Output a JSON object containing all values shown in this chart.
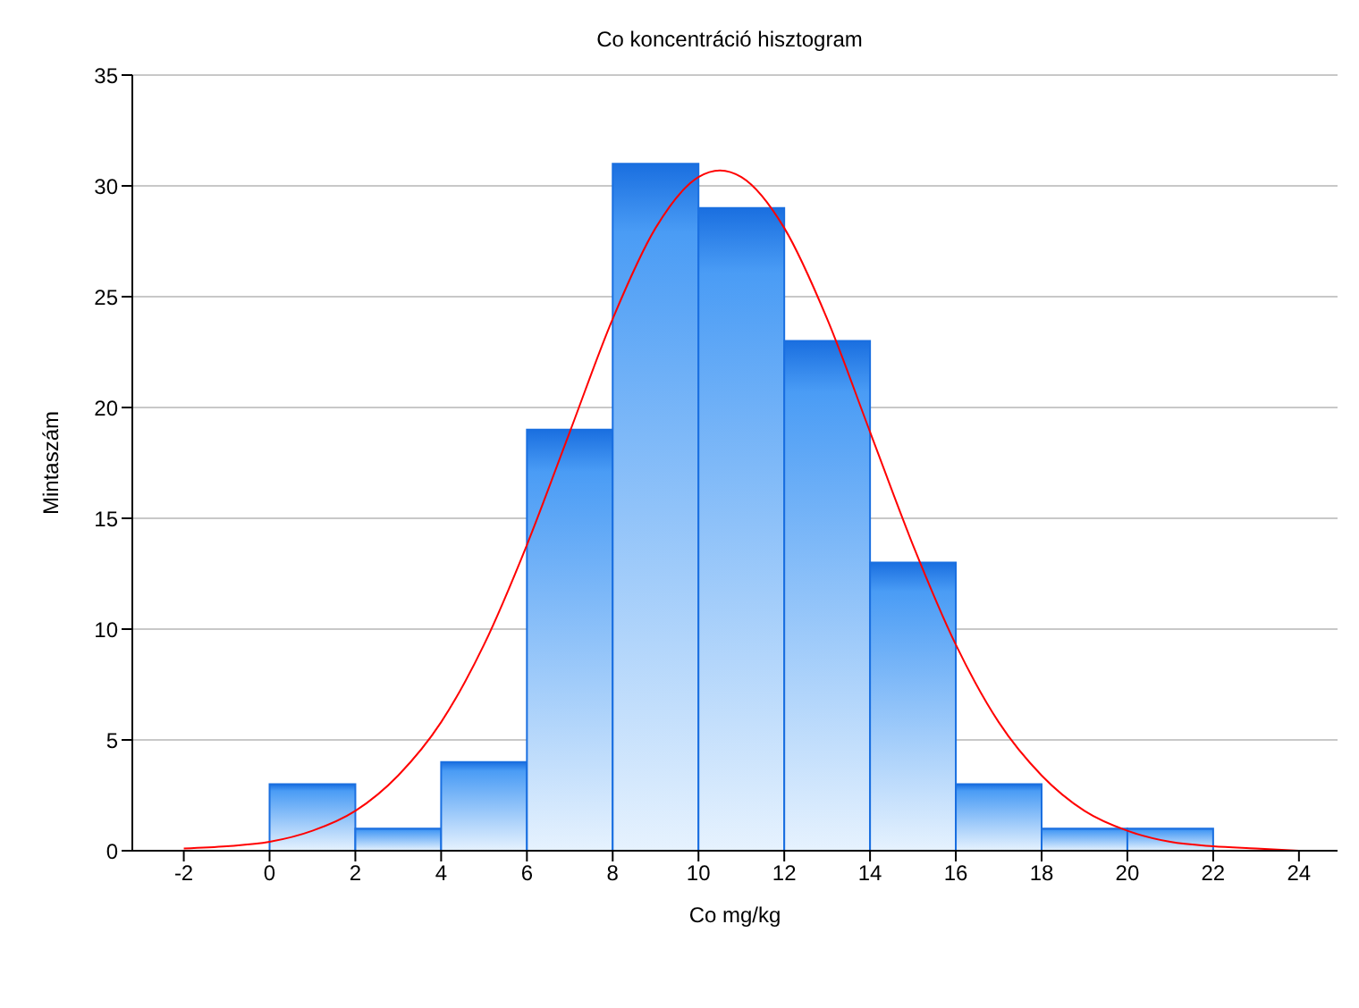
{
  "chart_data": {
    "type": "histogram",
    "title": "Co koncentráció hisztogram",
    "xlabel": "Co mg/kg",
    "ylabel": "Mintaszám",
    "bins": [
      0,
      2,
      4,
      6,
      8,
      10,
      12,
      14,
      16,
      18,
      20,
      22
    ],
    "values": [
      3,
      1,
      4,
      19,
      31,
      29,
      23,
      13,
      3,
      1,
      1
    ],
    "color": "#1a6fe0",
    "series": [
      {
        "type": "line",
        "color": "#ff0000",
        "x": [
          -2,
          -1,
          0,
          1,
          2,
          3,
          4,
          5,
          6,
          7,
          8,
          9,
          10,
          10.5,
          11,
          12,
          13,
          14,
          15,
          16,
          17,
          18,
          19,
          20,
          21,
          22,
          23,
          24
        ],
        "values": [
          0.1,
          0.2,
          0.4,
          0.9,
          1.8,
          3.4,
          5.8,
          9.3,
          13.8,
          18.9,
          24,
          28.1,
          30.4,
          30.7,
          30.4,
          28.1,
          24,
          18.9,
          13.8,
          9.3,
          5.8,
          3.4,
          1.8,
          0.9,
          0.4,
          0.2,
          0.1,
          0
        ]
      }
    ],
    "xlim": [
      -3.2,
      24.9
    ],
    "xticks": [
      -2,
      0,
      2,
      4,
      6,
      8,
      10,
      12,
      14,
      16,
      18,
      20,
      22,
      24
    ],
    "ylim": [
      0,
      35
    ],
    "yticks": [
      0,
      5,
      10,
      15,
      20,
      25,
      30,
      35
    ],
    "grid": "y",
    "marker": "none"
  }
}
